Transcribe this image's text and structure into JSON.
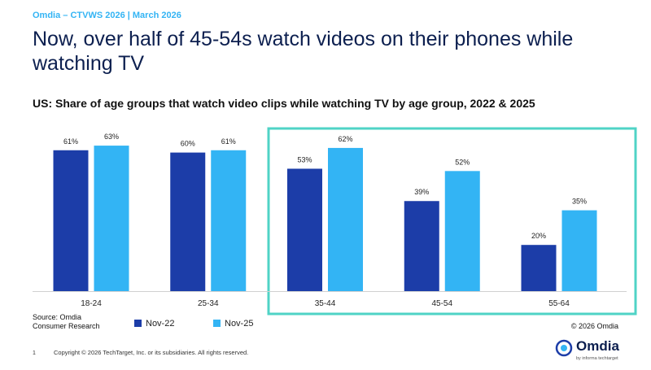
{
  "header": "Omdia – CTVWS 2026 | March 2026",
  "title": [
    "Now, over half of 45-54s watch videos on their phones while",
    "watching TV"
  ],
  "chart_data": {
    "type": "bar",
    "title": "US: Share of age groups that watch video clips while watching TV by age group, 2022 & 2025",
    "categories": [
      "18-24",
      "25-34",
      "35-44",
      "45-54",
      "55-64"
    ],
    "series": [
      {
        "name": "Nov-22",
        "color": "#1c3da8",
        "values": [
          61,
          60,
          53,
          39,
          20
        ],
        "value_labels": [
          "61%",
          "60%",
          "53%",
          "39%",
          "20%"
        ]
      },
      {
        "name": "Nov-25",
        "color": "#33b4f4",
        "values": [
          63,
          61,
          62,
          52,
          35
        ],
        "value_labels": [
          "63%",
          "61%",
          "62%",
          "52%",
          "35%"
        ]
      }
    ],
    "source": [
      "Source: Omdia",
      "Consumer Research"
    ],
    "copyright": "© 2026 Omdia"
  },
  "footer": {
    "page": "1",
    "copyright": "Copyright © 2026 TechTarget, Inc. or its subsidiaries. All rights reserved.",
    "logo": "Omdia",
    "logo_sub": "by informa techtarget"
  }
}
